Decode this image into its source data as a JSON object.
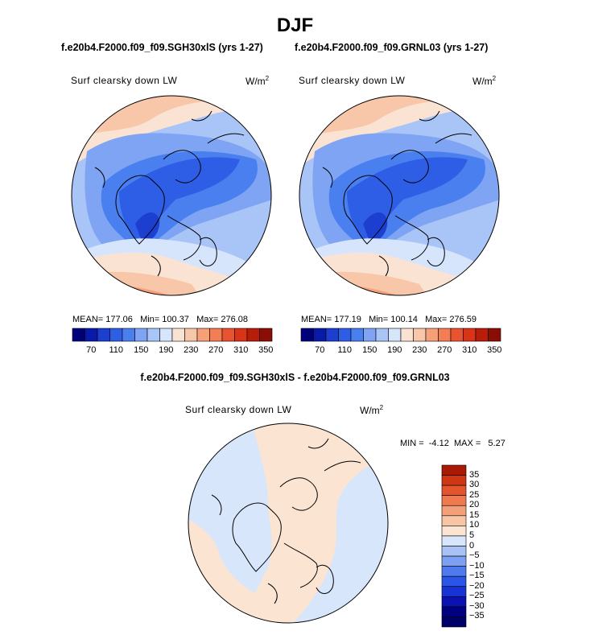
{
  "title": "DJF",
  "panels": [
    {
      "case_title": "f.e20b4.F2000.f09_f09.SGH30xlS (yrs 1-27)",
      "variable": "Surf clearsky down LW",
      "units": "W/m",
      "units_exp": "2",
      "stats": {
        "mean": "MEAN= 177.06",
        "min": "Min= 100.37",
        "max": "Max= 276.08"
      }
    },
    {
      "case_title": "f.e20b4.F2000.f09_f09.GRNL03 (yrs 1-27)",
      "variable": "Surf clearsky down LW",
      "units": "W/m",
      "units_exp": "2",
      "stats": {
        "mean": "MEAN= 177.19",
        "min": "Min= 100.14",
        "max": "Max= 276.59"
      }
    }
  ],
  "colorbar": {
    "colors": [
      "#00007a",
      "#0a1aa8",
      "#1d3fcf",
      "#2f5ee6",
      "#4a7ff0",
      "#7ea4f3",
      "#a9c4f7",
      "#d6e5fb",
      "#fbe3d3",
      "#f8c6a8",
      "#f6a07a",
      "#f37e55",
      "#ea5330",
      "#d83418",
      "#b81d0c",
      "#8a0e05"
    ],
    "labels": [
      "70",
      "110",
      "150",
      "190",
      "230",
      "270",
      "310",
      "350"
    ]
  },
  "difference": {
    "title": "f.e20b4.F2000.f09_f09.SGH30xlS - f.e20b4.F2000.f09_f09.GRNL03",
    "variable": "Surf clearsky down LW",
    "units": "W/m",
    "units_exp": "2",
    "minmax": "MIN =  -4.12  MAX =   5.27",
    "colorbar": {
      "colors": [
        "#000080",
        "#0a12b0",
        "#1733d6",
        "#2a55e8",
        "#4f7aee",
        "#7da0f2",
        "#a9c2f6",
        "#d7e6fb",
        "#fbe4d2",
        "#f7c4a4",
        "#f3a07a",
        "#ef7a50",
        "#e5552d",
        "#cf3614",
        "#a81a06"
      ],
      "labels": [
        "35",
        "30",
        "25",
        "20",
        "15",
        "10",
        "5",
        "0",
        "−5",
        "−10",
        "−15",
        "−20",
        "−25",
        "−30",
        "−35"
      ]
    }
  },
  "chart_data": [
    {
      "type": "heatmap",
      "projection": "polar stereographic (north pole)",
      "title": "f.e20b4.F2000.f09_f09.SGH30xlS (yrs 1-27)",
      "variable": "Surf clearsky down LW",
      "units": "W/m2",
      "levels": [
        70,
        90,
        110,
        130,
        150,
        170,
        190,
        210,
        230,
        250,
        270,
        290,
        310,
        330,
        350
      ],
      "mean": 177.06,
      "min": 100.37,
      "max": 276.08
    },
    {
      "type": "heatmap",
      "projection": "polar stereographic (north pole)",
      "title": "f.e20b4.F2000.f09_f09.GRNL03 (yrs 1-27)",
      "variable": "Surf clearsky down LW",
      "units": "W/m2",
      "levels": [
        70,
        90,
        110,
        130,
        150,
        170,
        190,
        210,
        230,
        250,
        270,
        290,
        310,
        330,
        350
      ],
      "mean": 177.19,
      "min": 100.14,
      "max": 276.59
    },
    {
      "type": "heatmap",
      "projection": "polar stereographic (north pole)",
      "title": "f.e20b4.F2000.f09_f09.SGH30xlS - f.e20b4.F2000.f09_f09.GRNL03",
      "variable": "Surf clearsky down LW",
      "units": "W/m2",
      "levels": [
        -35,
        -30,
        -25,
        -20,
        -15,
        -10,
        -5,
        0,
        5,
        10,
        15,
        20,
        25,
        30,
        35
      ],
      "min": -4.12,
      "max": 5.27
    }
  ]
}
